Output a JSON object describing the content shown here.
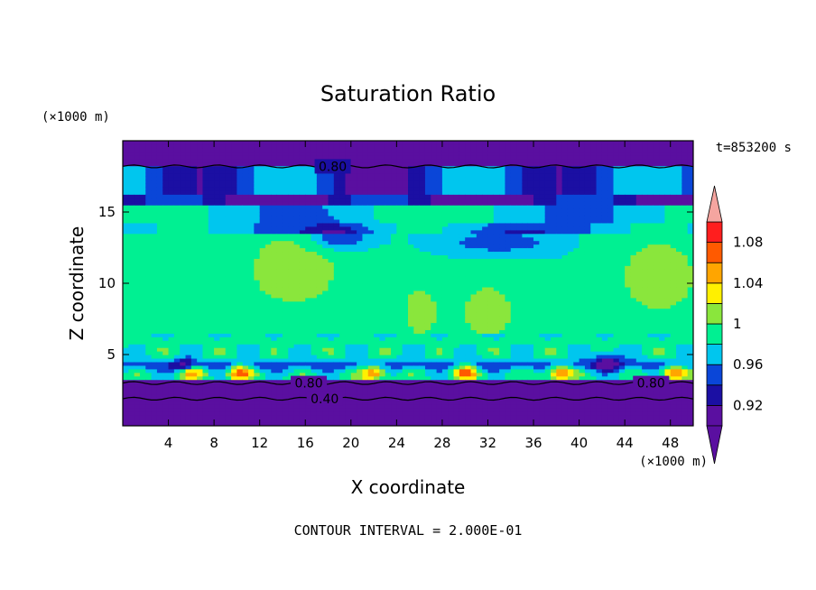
{
  "chart_data": {
    "type": "heatmap",
    "title": "Saturation Ratio",
    "xlabel": "X coordinate",
    "ylabel": "Z coordinate",
    "x_unit": "(×1000 m)",
    "y_unit": "(×1000 m)",
    "time_label": "t=853200 s",
    "footer": "CONTOUR INTERVAL = 2.000E-01",
    "xlim": [
      0,
      50
    ],
    "ylim": [
      0,
      20
    ],
    "x_ticks": [
      "4",
      "8",
      "12",
      "16",
      "20",
      "24",
      "28",
      "32",
      "36",
      "40",
      "44",
      "48"
    ],
    "y_ticks": [
      "5",
      "10",
      "15"
    ],
    "colorbar": {
      "levels": [
        0.9,
        0.92,
        0.94,
        0.96,
        0.98,
        1.0,
        1.02,
        1.04,
        1.06,
        1.08,
        1.1
      ],
      "tick_labels": [
        "0.92",
        "0.96",
        "1",
        "1.04",
        "1.08"
      ],
      "colors": [
        "#5a0fa0",
        "#1b0fa3",
        "#0a46d8",
        "#00c6ee",
        "#00f092",
        "#8ae63c",
        "#fff000",
        "#ffa500",
        "#ff5a00",
        "#ff1e1e"
      ],
      "below_color": "#5a0fa0",
      "above_color": "#f5a5a0"
    },
    "contour_labels": [
      "0.80",
      "0.80",
      "0.80",
      "0.40"
    ]
  }
}
